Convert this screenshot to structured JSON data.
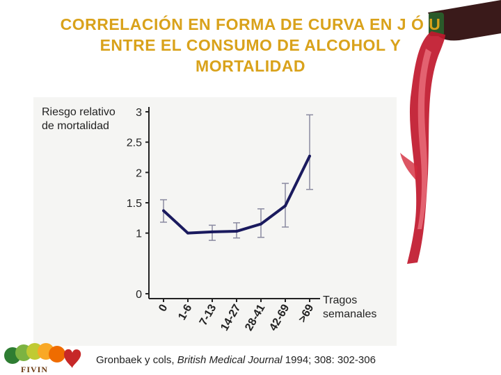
{
  "slide": {
    "title_lines": [
      "CORRELACIÓN EN FORMA DE CURVA EN J Ó U",
      "ENTRE EL CONSUMO DE ALCOHOL Y",
      "MORTALIDAD"
    ],
    "citation_authors": "Gronbaek y cols, ",
    "citation_journal": "British Medical Journal",
    "citation_details": " 1994; 308: 302-306",
    "logo_text": "FIVIN"
  },
  "colors": {
    "title": "#d9a21b",
    "line": "#1a1a5e",
    "error_bar": "#8a8aa0",
    "axis": "#222222",
    "wine": "#c0182c"
  },
  "chart_data": {
    "type": "line",
    "ylabel_lines": [
      "Riesgo relativo",
      "de mortalidad"
    ],
    "xlabel_lines": [
      "Tragos",
      "semanales"
    ],
    "categories": [
      "0",
      "1-6",
      "7-13",
      "14-27",
      "28-41",
      "42-69",
      ">69"
    ],
    "yticks": [
      "0",
      "1",
      "1.5",
      "2",
      "2.5",
      "3"
    ],
    "ylim": [
      0,
      3
    ],
    "grid": false,
    "series": [
      {
        "values": [
          1.37,
          1.0,
          1.02,
          1.03,
          1.15,
          1.45,
          2.27
        ],
        "lower": [
          1.18,
          1.0,
          0.88,
          0.92,
          0.93,
          1.1,
          1.72
        ],
        "upper": [
          1.55,
          1.0,
          1.13,
          1.17,
          1.4,
          1.82,
          2.95
        ]
      }
    ]
  }
}
